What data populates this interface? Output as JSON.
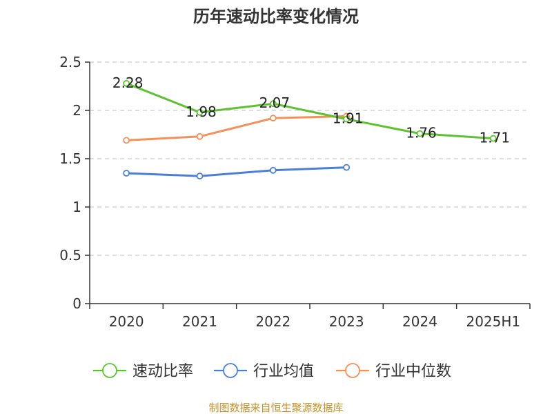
{
  "chart_data": {
    "type": "line",
    "title": "历年速动比率变化情况",
    "categories": [
      "2020",
      "2021",
      "2022",
      "2023",
      "2024",
      "2025H1"
    ],
    "ylim": [
      0,
      2.5
    ],
    "yticks": [
      "0",
      "0.5",
      "1",
      "1.5",
      "2",
      "2.5"
    ],
    "grid": true,
    "legend_position": "bottom",
    "series": [
      {
        "name": "速动比率",
        "color": "#5cc32e",
        "values": [
          2.28,
          1.98,
          2.07,
          1.91,
          1.76,
          1.71
        ],
        "labels": [
          "2.28",
          "1.98",
          "2.07",
          "1.91",
          "1.76",
          "1.71"
        ]
      },
      {
        "name": "行业均值",
        "color": "#4a7fd8",
        "values": [
          1.35,
          1.32,
          1.38,
          1.41,
          null,
          null
        ]
      },
      {
        "name": "行业中位数",
        "color": "#f59058",
        "values": [
          1.69,
          1.73,
          1.92,
          1.94,
          null,
          null
        ]
      }
    ]
  },
  "footer": {
    "source": "制图数据来自恒生聚源数据库"
  }
}
